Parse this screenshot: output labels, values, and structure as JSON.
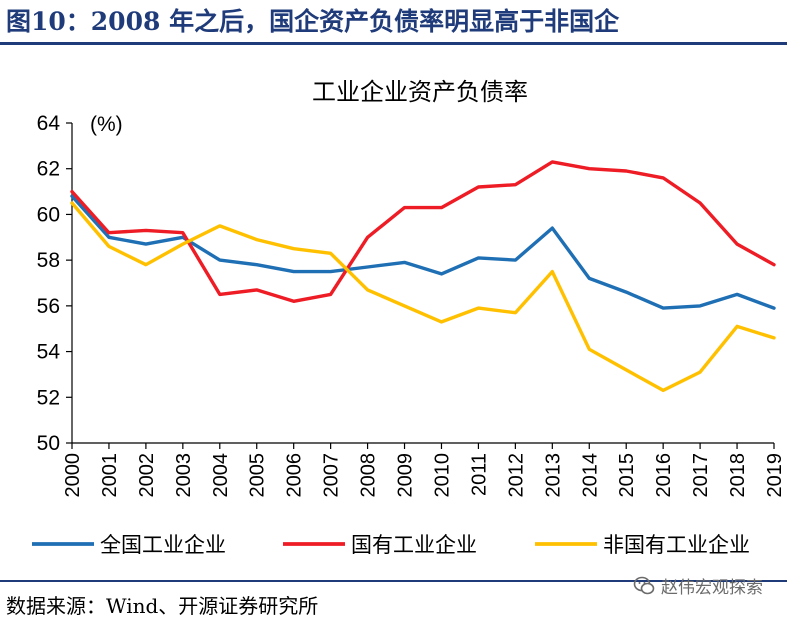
{
  "figure_title": "图10：2008 年之后，国企资产负债率明显高于非国企",
  "source_text": "数据来源：Wind、开源证券研究所",
  "watermark_text": "赵伟宏观探索",
  "chart_data": {
    "type": "line",
    "title": "工业企业资产负债率",
    "unit_label": "(%)",
    "x": [
      "2000",
      "2001",
      "2002",
      "2003",
      "2004",
      "2005",
      "2006",
      "2007",
      "2008",
      "2009",
      "2010",
      "2011",
      "2012",
      "2013",
      "2014",
      "2015",
      "2016",
      "2017",
      "2018",
      "2019"
    ],
    "ylim": [
      50,
      64
    ],
    "yticks": [
      50,
      52,
      54,
      56,
      58,
      60,
      62,
      64
    ],
    "grid": false,
    "legend_position": "bottom",
    "series": [
      {
        "name": "全国工业企业",
        "color": "#1f6fb5",
        "values": [
          60.8,
          59.0,
          58.7,
          59.0,
          58.0,
          57.8,
          57.5,
          57.5,
          57.7,
          57.9,
          57.4,
          58.1,
          58.0,
          59.4,
          57.2,
          56.6,
          55.9,
          56.0,
          56.5,
          55.9
        ]
      },
      {
        "name": "国有工业企业",
        "color": "#ee1c25",
        "values": [
          61.0,
          59.2,
          59.3,
          59.2,
          56.5,
          56.7,
          56.2,
          56.5,
          59.0,
          60.3,
          60.3,
          61.2,
          61.3,
          62.3,
          62.0,
          61.9,
          61.6,
          60.5,
          58.7,
          57.8
        ]
      },
      {
        "name": "非国有工业企业",
        "color": "#ffc000",
        "values": [
          60.5,
          58.6,
          57.8,
          58.7,
          59.5,
          58.9,
          58.5,
          58.3,
          56.7,
          56.0,
          55.3,
          55.9,
          55.7,
          57.5,
          54.1,
          53.2,
          52.3,
          53.1,
          55.1,
          54.6
        ]
      }
    ]
  }
}
